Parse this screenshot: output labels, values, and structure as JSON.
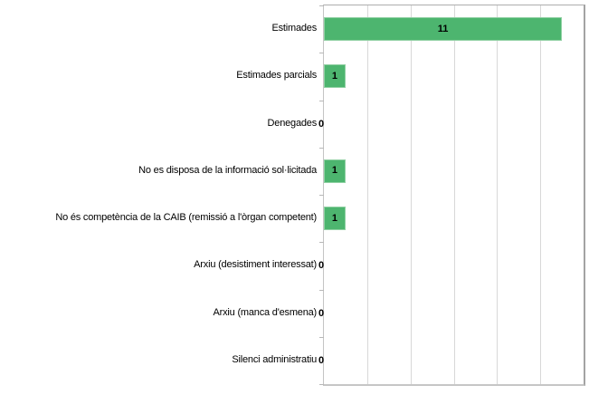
{
  "chart_data": {
    "type": "bar",
    "orientation": "horizontal",
    "title": "",
    "xlabel": "",
    "ylabel": "",
    "categories": [
      "Estimades",
      "Estimades parcials",
      "Denegades",
      "No es disposa de la informació sol·licitada",
      "No és competència de la CAIB (remissió a l'òrgan competent)",
      "Arxiu (desistiment interessat)",
      "Arxiu (manca d'esmena)",
      "Silenci administratiu"
    ],
    "values": [
      11,
      1,
      0,
      1,
      1,
      0,
      0,
      0
    ],
    "value_labels": [
      "11",
      "1",
      "0",
      "1",
      "1",
      "0",
      "0",
      "0"
    ],
    "xlim": [
      0,
      12
    ],
    "grid_interval": 2,
    "grid": true,
    "legend": "none",
    "colors": {
      "bar_fill": "#4db56f",
      "bar_border": "#8fd0a2",
      "gridline": "#d8d8d8",
      "plot_border": "#a3a3a3",
      "axis_line": "#c4c4c4",
      "value_label": "#000000",
      "category_label": "#000000",
      "background": "#ffffff"
    }
  }
}
